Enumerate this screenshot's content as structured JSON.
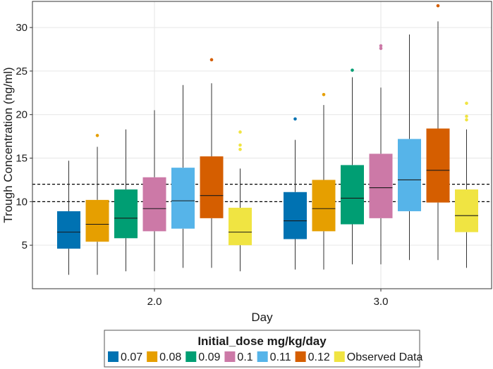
{
  "chart_data": {
    "type": "boxplot",
    "title": "",
    "xlabel": "Day",
    "ylabel": "Trough Concentration (ng/ml)",
    "ylim": [
      0,
      33
    ],
    "yticks": [
      5,
      10,
      15,
      20,
      25,
      30
    ],
    "grid": true,
    "categories": [
      "2.0",
      "3.0"
    ],
    "reference_lines": [
      {
        "y": 10,
        "style": "dashed"
      },
      {
        "y": 12,
        "style": "dashed"
      }
    ],
    "legend": {
      "title": "Initial_dose mg/kg/day",
      "placement": "bottom"
    },
    "series": [
      {
        "name": "0.07",
        "color": "#0072B2",
        "boxes": [
          {
            "category": "2.0",
            "whisker_low": 1.6,
            "q1": 4.6,
            "median": 6.5,
            "q3": 8.9,
            "whisker_high": 14.7,
            "outliers": []
          },
          {
            "category": "3.0",
            "whisker_low": 2.2,
            "q1": 5.7,
            "median": 7.8,
            "q3": 11.1,
            "whisker_high": 17.1,
            "outliers": [
              19.5
            ]
          }
        ]
      },
      {
        "name": "0.08",
        "color": "#E69F00",
        "boxes": [
          {
            "category": "2.0",
            "whisker_low": 1.6,
            "q1": 5.4,
            "median": 7.4,
            "q3": 10.2,
            "whisker_high": 16.3,
            "outliers": [
              17.6
            ]
          },
          {
            "category": "3.0",
            "whisker_low": 2.2,
            "q1": 6.6,
            "median": 9.2,
            "q3": 12.5,
            "whisker_high": 21.1,
            "outliers": [
              22.3
            ]
          }
        ]
      },
      {
        "name": "0.09",
        "color": "#009E73",
        "boxes": [
          {
            "category": "2.0",
            "whisker_low": 2.0,
            "q1": 5.8,
            "median": 8.1,
            "q3": 11.4,
            "whisker_high": 18.3,
            "outliers": []
          },
          {
            "category": "3.0",
            "whisker_low": 2.8,
            "q1": 7.4,
            "median": 10.4,
            "q3": 14.2,
            "whisker_high": 24.3,
            "outliers": [
              25.1
            ]
          }
        ]
      },
      {
        "name": "0.1",
        "color": "#CC79A7",
        "boxes": [
          {
            "category": "2.0",
            "whisker_low": 2.0,
            "q1": 6.6,
            "median": 9.2,
            "q3": 12.8,
            "whisker_high": 20.5,
            "outliers": []
          },
          {
            "category": "3.0",
            "whisker_low": 2.8,
            "q1": 8.1,
            "median": 11.6,
            "q3": 15.5,
            "whisker_high": 23.1,
            "outliers": [
              27.6,
              27.9
            ]
          }
        ]
      },
      {
        "name": "0.11",
        "color": "#56B4E9",
        "boxes": [
          {
            "category": "2.0",
            "whisker_low": 2.4,
            "q1": 6.9,
            "median": 10.1,
            "q3": 13.9,
            "whisker_high": 23.4,
            "outliers": []
          },
          {
            "category": "3.0",
            "whisker_low": 3.3,
            "q1": 8.9,
            "median": 12.5,
            "q3": 17.2,
            "whisker_high": 29.2,
            "outliers": []
          }
        ]
      },
      {
        "name": "0.12",
        "color": "#D55E00",
        "boxes": [
          {
            "category": "2.0",
            "whisker_low": 2.4,
            "q1": 8.1,
            "median": 10.7,
            "q3": 15.2,
            "whisker_high": 23.6,
            "outliers": [
              26.3
            ]
          },
          {
            "category": "3.0",
            "whisker_low": 3.3,
            "q1": 9.9,
            "median": 13.6,
            "q3": 18.4,
            "whisker_high": 30.7,
            "outliers": [
              32.5
            ]
          }
        ]
      },
      {
        "name": "Observed Data",
        "color": "#F0E442",
        "boxes": [
          {
            "category": "2.0",
            "whisker_low": 2.0,
            "q1": 5.0,
            "median": 6.5,
            "q3": 9.3,
            "whisker_high": 13.8,
            "outliers": [
              16.0,
              16.5,
              18.0
            ]
          },
          {
            "category": "3.0",
            "whisker_low": 2.4,
            "q1": 6.5,
            "median": 8.4,
            "q3": 11.4,
            "whisker_high": 18.3,
            "outliers": [
              19.4,
              19.8,
              21.3
            ]
          }
        ]
      }
    ]
  }
}
